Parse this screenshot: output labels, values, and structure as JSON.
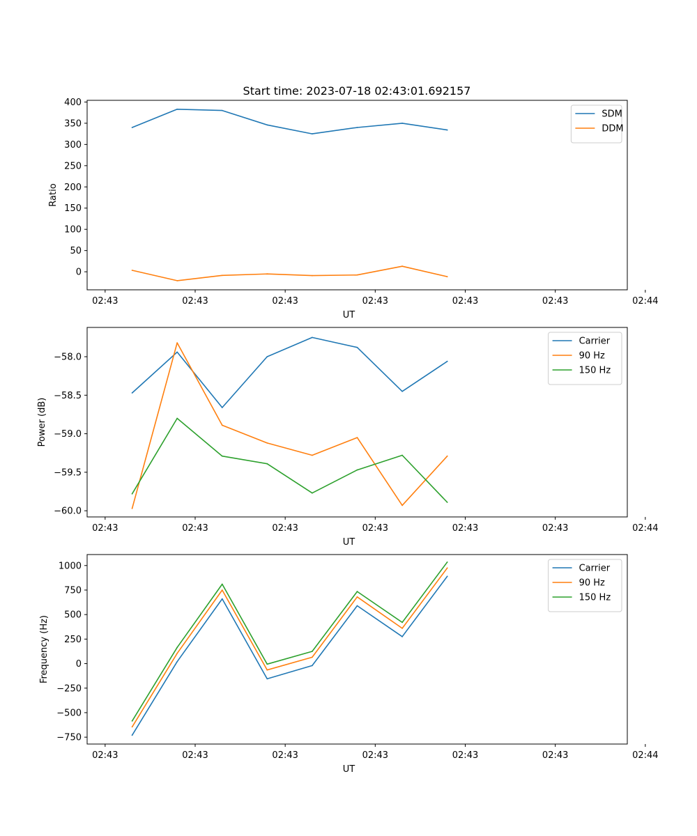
{
  "figure_title": "Start time: 2023-07-18 02:43:01.692157",
  "colors": {
    "blue": "#1f77b4",
    "orange": "#ff7f0e",
    "green": "#2ca02c"
  },
  "chart_data": [
    {
      "type": "line",
      "xlabel": "UT",
      "ylabel": "Ratio",
      "xlim": [
        0,
        12
      ],
      "ylim": [
        -42.5,
        404
      ],
      "xticks": [
        0.4,
        2.4,
        4.4,
        6.4,
        8.4,
        10.4,
        12.4
      ],
      "xtick_labels": [
        "02:43",
        "02:43",
        "02:43",
        "02:43",
        "02:43",
        "02:43",
        "02:44"
      ],
      "yticks": [
        400,
        350,
        300,
        250,
        200,
        150,
        100,
        50,
        0
      ],
      "ytick_labels": [
        "400",
        "350",
        "300",
        "250",
        "200",
        "150",
        "100",
        "50",
        "0"
      ],
      "x": [
        1,
        2,
        3,
        4,
        5,
        6,
        7,
        8
      ],
      "legend_position": "top-right",
      "series": [
        {
          "name": "SDM",
          "color": "#1f77b4",
          "values": [
            340,
            383,
            380,
            346,
            325,
            340,
            350,
            334
          ]
        },
        {
          "name": "DDM",
          "color": "#ff7f0e",
          "values": [
            3.5,
            -21,
            -8.5,
            -5,
            -9,
            -7.5,
            13,
            -11.5
          ]
        }
      ]
    },
    {
      "type": "line",
      "xlabel": "UT",
      "ylabel": "Power (dB)",
      "xlim": [
        0,
        12
      ],
      "ylim": [
        -60.08,
        -57.62
      ],
      "xticks": [
        0.4,
        2.4,
        4.4,
        6.4,
        8.4,
        10.4,
        12.4
      ],
      "xtick_labels": [
        "02:43",
        "02:43",
        "02:43",
        "02:43",
        "02:43",
        "02:43",
        "02:44"
      ],
      "yticks": [
        -58.0,
        -58.5,
        -59.0,
        -59.5,
        -60.0
      ],
      "ytick_labels": [
        "−58.0",
        "−58.5",
        "−59.0",
        "−59.5",
        "−60.0"
      ],
      "x": [
        1,
        2,
        3,
        4,
        5,
        6,
        7,
        8
      ],
      "legend_position": "top-right",
      "series": [
        {
          "name": "Carrier",
          "color": "#1f77b4",
          "values": [
            -58.47,
            -57.94,
            -58.66,
            -58.0,
            -57.75,
            -57.88,
            -58.45,
            -58.06
          ]
        },
        {
          "name": "90 Hz",
          "color": "#ff7f0e",
          "values": [
            -59.97,
            -57.82,
            -58.89,
            -59.12,
            -59.28,
            -59.05,
            -59.93,
            -59.29
          ]
        },
        {
          "name": "150 Hz",
          "color": "#2ca02c",
          "values": [
            -59.78,
            -58.8,
            -59.29,
            -59.39,
            -59.77,
            -59.47,
            -59.28,
            -59.89
          ]
        }
      ]
    },
    {
      "type": "line",
      "xlabel": "UT",
      "ylabel": "Frequency (Hz)",
      "xlim": [
        0,
        12
      ],
      "ylim": [
        -820,
        1112
      ],
      "xticks": [
        0.4,
        2.4,
        4.4,
        6.4,
        8.4,
        10.4,
        12.4
      ],
      "xtick_labels": [
        "02:43",
        "02:43",
        "02:43",
        "02:43",
        "02:43",
        "02:43",
        "02:44"
      ],
      "yticks": [
        1000,
        750,
        500,
        250,
        0,
        -250,
        -500,
        -750
      ],
      "ytick_labels": [
        "1000",
        "750",
        "500",
        "250",
        "0",
        "−250",
        "−500",
        "−750"
      ],
      "x": [
        1,
        2,
        3,
        4,
        5,
        6,
        7,
        8
      ],
      "legend_position": "top-right",
      "series": [
        {
          "name": "Carrier",
          "color": "#1f77b4",
          "values": [
            -730,
            20,
            660,
            -155,
            -20,
            590,
            275,
            890
          ]
        },
        {
          "name": "90 Hz",
          "color": "#ff7f0e",
          "values": [
            -645,
            105,
            750,
            -65,
            65,
            680,
            360,
            975
          ]
        },
        {
          "name": "150 Hz",
          "color": "#2ca02c",
          "values": [
            -585,
            165,
            810,
            -5,
            125,
            735,
            420,
            1035
          ]
        }
      ]
    }
  ]
}
